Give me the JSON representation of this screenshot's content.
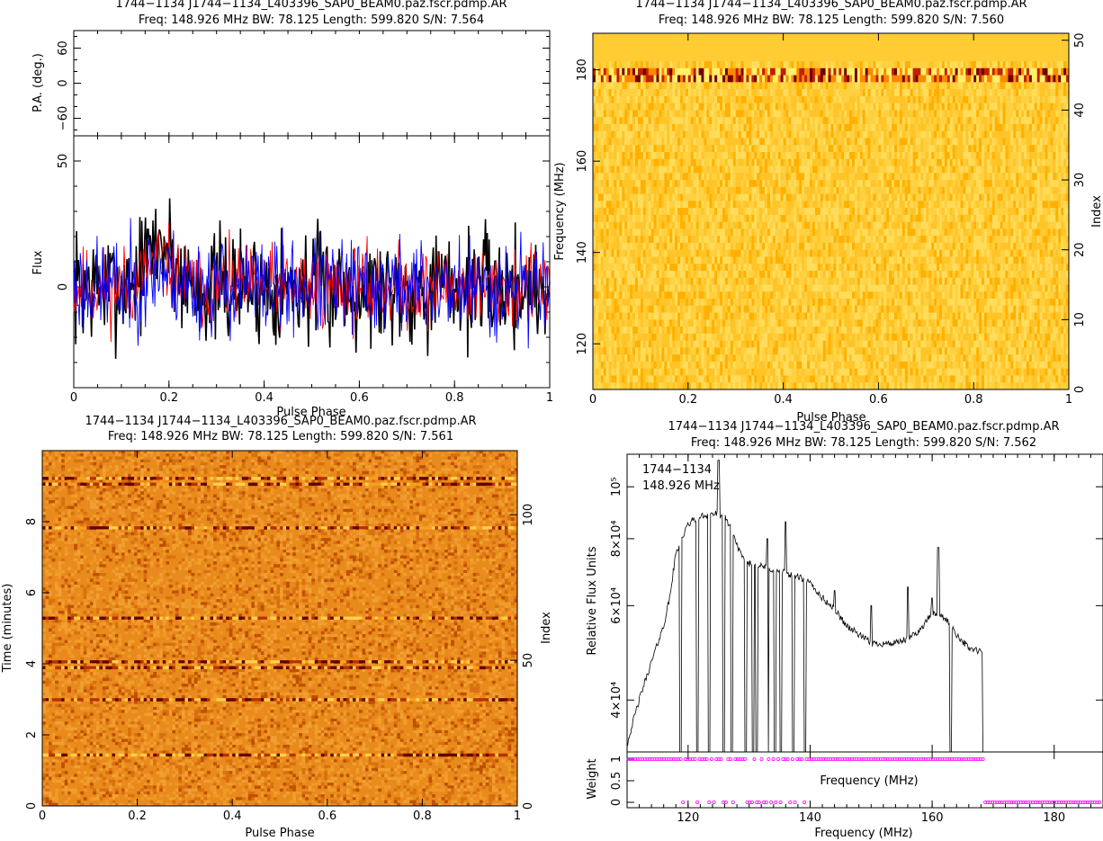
{
  "panels": {
    "profile": {
      "title_line1": "1744−1134 J1744−1134_L403396_SAP0_BEAM0.paz.fscr.pdmp.AR",
      "title_line2": "Freq: 148.926 MHz BW: 78.125 Length: 599.820 S/N: 7.564"
    },
    "freq_phase": {
      "title_line1": "1744−1134 J1744−1134_L403396_SAP0_BEAM0.paz.fscr.pdmp.AR",
      "title_line2": "Freq: 148.926 MHz BW: 78.125 Length: 599.820 S/N: 7.560"
    },
    "time_phase": {
      "title_line1": "1744−1134 J1744−1134_L403396_SAP0_BEAM0.paz.fscr.pdmp.AR",
      "title_line2": "Freq: 148.926 MHz BW: 78.125 Length: 599.820 S/N: 7.561"
    },
    "bandpass": {
      "title_line1": "1744−1134 J1744−1134_L403396_SAP0_BEAM0.paz.fscr.pdmp.AR",
      "title_line2": "Freq: 148.926 MHz BW: 78.125 Length: 599.820 S/N: 7.562",
      "annot_source": "1744−1134",
      "annot_freq": "148.926 MHz"
    }
  },
  "chart_data": [
    {
      "type": "line",
      "name": "pulse-profile",
      "xlabel": "Pulse Phase",
      "ylabel": "Flux",
      "xlim": [
        0,
        1
      ],
      "ylim": [
        -40,
        60
      ],
      "xticks": [
        "0",
        "0.2",
        "0.4",
        "0.6",
        "0.8",
        "1"
      ],
      "yticks": [
        "0",
        "50"
      ],
      "series": [
        {
          "color": "#000000",
          "values_note": "noise-like",
          "seed": 7,
          "scale": 14,
          "bump": 18
        },
        {
          "color": "#ff0000",
          "seed": 11,
          "scale": 10,
          "bump": 10
        },
        {
          "color": "#0000ff",
          "seed": 23,
          "scale": 12,
          "bump": 6
        }
      ],
      "pa_panel": {
        "ylabel": "P.A. (deg.)",
        "yticks": [
          "−60",
          "0",
          "60"
        ],
        "ylim": [
          -90,
          90
        ]
      }
    },
    {
      "type": "heatmap",
      "name": "frequency-vs-phase",
      "xlabel": "Pulse Phase",
      "ylabel": "Frequency (MHz)",
      "ylabel_right": "Index",
      "xlim": [
        0,
        1
      ],
      "ylim": [
        110,
        188
      ],
      "right_ylim": [
        0,
        51
      ],
      "xticks": [
        "0",
        "0.2",
        "0.4",
        "0.6",
        "0.8",
        "1"
      ],
      "yticks": [
        "120",
        "140",
        "160",
        "180"
      ],
      "right_yticks": [
        "0",
        "10",
        "20",
        "30",
        "40",
        "50"
      ],
      "colormap": [
        "#ffd24a",
        "#ffb000",
        "#e06000",
        "#a00000",
        "#500000"
      ]
    },
    {
      "type": "heatmap",
      "name": "time-vs-phase",
      "xlabel": "Pulse Phase",
      "ylabel": "Time (minutes)",
      "ylabel_right": "Index",
      "xlim": [
        0,
        1
      ],
      "ylim": [
        0,
        10
      ],
      "right_ylim": [
        0,
        122
      ],
      "xticks": [
        "0",
        "0.2",
        "0.4",
        "0.6",
        "0.8",
        "1"
      ],
      "yticks": [
        "0",
        "2",
        "4",
        "6",
        "8"
      ],
      "right_yticks": [
        "0",
        "50",
        "100"
      ],
      "bright_rows_minutes": [
        1.45,
        3.0,
        3.95,
        4.1,
        5.3,
        7.85,
        9.1,
        9.3
      ]
    },
    {
      "type": "line",
      "name": "bandpass",
      "xlabel": "Frequency (MHz)",
      "ylabel": "Relative Flux Units",
      "xlim": [
        110,
        188
      ],
      "xticks": [
        "120",
        "140",
        "160",
        "180"
      ],
      "ytick_labels": [
        "4×10⁴",
        "6×10⁴",
        "8×10⁴",
        "10⁵"
      ],
      "ytick_values": [
        40000,
        60000,
        80000,
        100000
      ],
      "ylim_log": [
        32000,
        115000
      ],
      "curve_points": [
        [
          110,
          33000
        ],
        [
          112,
          40000
        ],
        [
          114,
          47000
        ],
        [
          116,
          55000
        ],
        [
          117,
          62000
        ],
        [
          118,
          75000
        ],
        [
          119,
          80000
        ],
        [
          120,
          85000
        ],
        [
          121,
          87000
        ],
        [
          122,
          88000
        ],
        [
          124,
          89000
        ],
        [
          125,
          89000
        ],
        [
          126,
          88000
        ],
        [
          127,
          84000
        ],
        [
          128,
          78000
        ],
        [
          129,
          73000
        ],
        [
          130,
          72000
        ],
        [
          132,
          71000
        ],
        [
          134,
          70000
        ],
        [
          136,
          69000
        ],
        [
          138,
          68000
        ],
        [
          140,
          66000
        ],
        [
          142,
          62000
        ],
        [
          144,
          59000
        ],
        [
          146,
          55000
        ],
        [
          148,
          53000
        ],
        [
          150,
          51000
        ],
        [
          152,
          51000
        ],
        [
          154,
          51000
        ],
        [
          156,
          52000
        ],
        [
          158,
          54000
        ],
        [
          160,
          58000
        ],
        [
          162,
          57000
        ],
        [
          164,
          53000
        ],
        [
          166,
          50000
        ],
        [
          168.5,
          49000
        ]
      ],
      "spikes_up": [
        [
          125,
          112000
        ],
        [
          133,
          80000
        ],
        [
          136,
          86000
        ],
        [
          144,
          64000
        ],
        [
          150,
          60000
        ],
        [
          156,
          65000
        ],
        [
          161,
          77000
        ],
        [
          160,
          62000
        ]
      ],
      "dropouts_mhz": [
        118.8,
        121.5,
        123.5,
        125.8,
        127.2,
        129.5,
        130.6,
        131.2,
        133.0,
        134.3,
        135.2,
        137.2,
        139.2,
        163.0,
        168.5
      ],
      "weight_panel": {
        "ylabel": "Weight",
        "xlabel_inner": "Frequency (MHz)",
        "yticks": [
          "0",
          "0.5",
          "1"
        ],
        "ylim": [
          0,
          1
        ],
        "marker_color": "#ff00ff",
        "weight_one_ranges_mhz": [
          [
            110,
            168.5
          ]
        ],
        "weight_zero_ranges_mhz": [
          [
            168.5,
            188
          ]
        ],
        "weight_zero_points_mhz": [
          119.2,
          121.5,
          123.6,
          124.2,
          126.0,
          127.2,
          129.7,
          130.2,
          130.6,
          131.2,
          131.8,
          132.4,
          133.0,
          133.6,
          134.3,
          135.0,
          136.8,
          137.4,
          139.2
        ]
      }
    }
  ]
}
